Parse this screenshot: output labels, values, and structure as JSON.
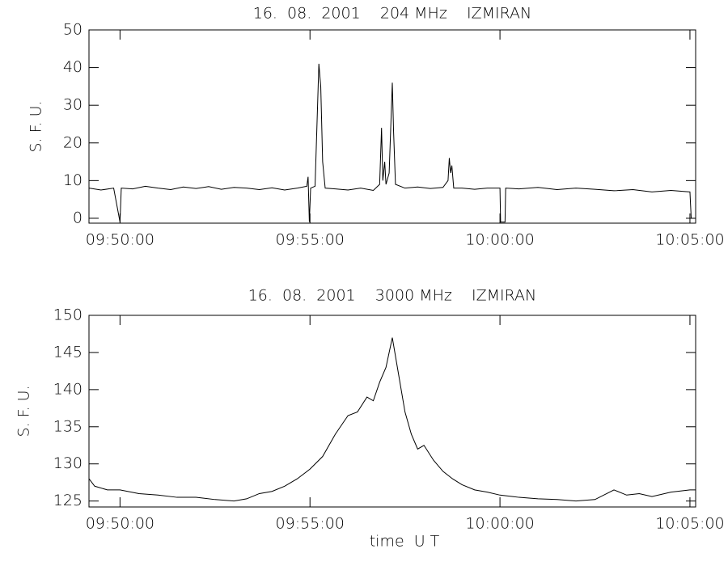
{
  "chart_data": [
    {
      "type": "line",
      "title": "16.  08.  2001    204 MHz    IZMIRAN",
      "y_label": "S. F. U.",
      "color": "#000000",
      "x": [
        "09:49:11",
        "09:49:30",
        "09:49:50",
        "09:50:00",
        "09:50:02",
        "09:50:20",
        "09:50:40",
        "09:51:00",
        "09:51:20",
        "09:51:40",
        "09:52:00",
        "09:52:20",
        "09:52:40",
        "09:53:00",
        "09:53:20",
        "09:53:40",
        "09:54:00",
        "09:54:20",
        "09:54:40",
        "09:54:55",
        "09:54:57",
        "09:54:59",
        "09:55:01",
        "09:55:08",
        "09:55:12",
        "09:55:14",
        "09:55:17",
        "09:55:20",
        "09:55:24",
        "09:55:40",
        "09:56:00",
        "09:56:20",
        "09:56:40",
        "09:56:50",
        "09:56:53",
        "09:56:55",
        "09:56:58",
        "09:57:00",
        "09:57:05",
        "09:57:10",
        "09:57:12",
        "09:57:15",
        "09:57:30",
        "09:57:50",
        "09:58:10",
        "09:58:30",
        "09:58:38",
        "09:58:40",
        "09:58:42",
        "09:58:44",
        "09:58:47",
        "09:59:00",
        "09:59:20",
        "09:59:40",
        "10:00:00",
        "10:00:01",
        "10:00:08",
        "10:00:09",
        "10:00:30",
        "10:01:00",
        "10:01:30",
        "10:02:00",
        "10:02:30",
        "10:03:00",
        "10:03:30",
        "10:04:00",
        "10:04:30",
        "10:05:00",
        "10:05:02",
        "10:05:09"
      ],
      "values": [
        8,
        7.5,
        8,
        -1,
        8,
        7.8,
        8.5,
        8,
        7.6,
        8.3,
        7.9,
        8.4,
        7.7,
        8.2,
        8,
        7.6,
        8.1,
        7.5,
        8,
        8.5,
        11,
        -1,
        8,
        8.5,
        30,
        41,
        35,
        15,
        8,
        7.8,
        7.5,
        8,
        7.4,
        9,
        24,
        10,
        15,
        9,
        12,
        36,
        23,
        9,
        8,
        8.3,
        7.9,
        8.2,
        10,
        16,
        12,
        14,
        8,
        8,
        7.7,
        8,
        8,
        -1,
        -1,
        8,
        7.8,
        8.2,
        7.6,
        8,
        7.7,
        7.3,
        7.6,
        7,
        7.4,
        7,
        0,
        0
      ],
      "xlim": [
        "09:49:11",
        "10:05:09"
      ],
      "xticks": [
        "09:50:00",
        "09:55:00",
        "10:00:00",
        "10:05:00"
      ],
      "ylim": [
        -1.3,
        50
      ],
      "yticks": [
        0,
        10,
        20,
        30,
        40,
        50
      ]
    },
    {
      "type": "line",
      "title": "16.  08.  2001    3000 MHz    IZMIRAN",
      "y_label": "S. F. U.",
      "x_label": "time  U T",
      "color": "#000000",
      "x": [
        "09:49:11",
        "09:49:20",
        "09:49:40",
        "09:50:00",
        "09:50:30",
        "09:51:00",
        "09:51:30",
        "09:52:00",
        "09:52:30",
        "09:53:00",
        "09:53:20",
        "09:53:40",
        "09:54:00",
        "09:54:20",
        "09:54:40",
        "09:55:00",
        "09:55:20",
        "09:55:40",
        "09:56:00",
        "09:56:15",
        "09:56:30",
        "09:56:40",
        "09:56:50",
        "09:57:00",
        "09:57:10",
        "09:57:20",
        "09:57:30",
        "09:57:40",
        "09:57:50",
        "09:58:00",
        "09:58:15",
        "09:58:30",
        "09:58:45",
        "09:59:00",
        "09:59:20",
        "09:59:40",
        "10:00:00",
        "10:00:30",
        "10:01:00",
        "10:01:30",
        "10:02:00",
        "10:02:30",
        "10:03:00",
        "10:03:20",
        "10:03:40",
        "10:04:00",
        "10:04:30",
        "10:05:00",
        "10:05:09"
      ],
      "values": [
        128,
        127,
        126.5,
        126.5,
        126,
        125.8,
        125.5,
        125.5,
        125.2,
        125,
        125.3,
        126,
        126.3,
        127,
        128,
        129.3,
        131,
        134,
        136.5,
        137,
        139,
        138.5,
        141,
        143,
        147,
        142,
        137,
        134,
        132,
        132.5,
        130.5,
        129,
        128,
        127.2,
        126.5,
        126.2,
        125.8,
        125.5,
        125.3,
        125.2,
        125,
        125.2,
        126.5,
        125.8,
        126,
        125.6,
        126.2,
        126.5,
        126.5
      ],
      "xlim": [
        "09:49:11",
        "10:05:09"
      ],
      "xticks": [
        "09:50:00",
        "09:55:00",
        "10:00:00",
        "10:05:00"
      ],
      "ylim": [
        124.2,
        150
      ],
      "yticks": [
        125,
        130,
        135,
        140,
        145,
        150
      ]
    }
  ]
}
